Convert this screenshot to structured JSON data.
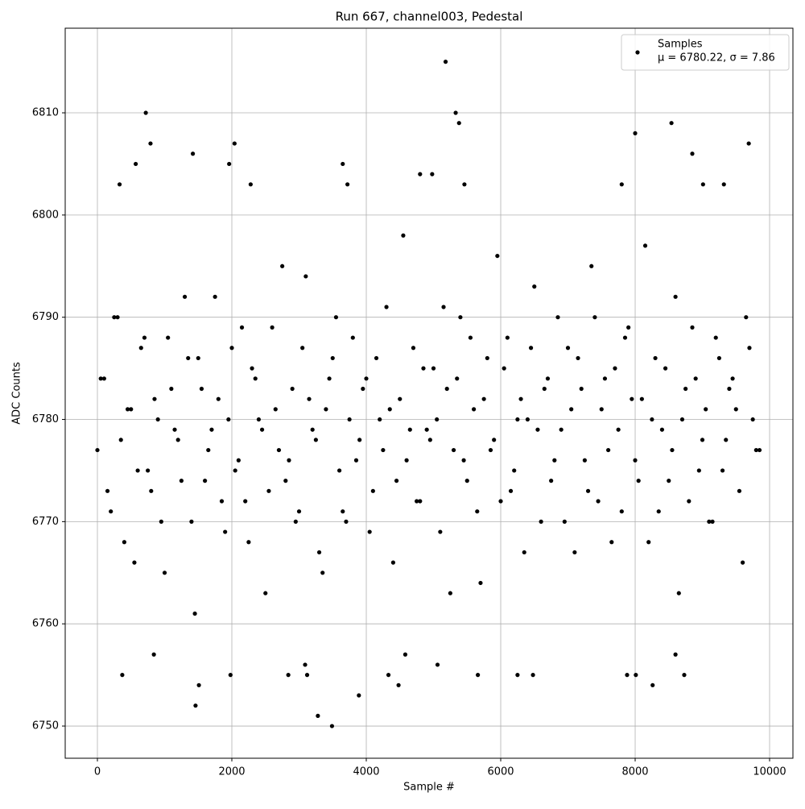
{
  "chart_data": {
    "type": "scatter",
    "title": "Run 667, channel003, Pedestal",
    "xlabel": "Sample #",
    "ylabel": "ADC Counts",
    "xlim": [
      -479,
      10347
    ],
    "ylim": [
      6746.85,
      6818.28
    ],
    "xticks": [
      0,
      2000,
      4000,
      6000,
      8000,
      10000
    ],
    "yticks": [
      6750,
      6760,
      6770,
      6780,
      6790,
      6800,
      6810
    ],
    "grid": true,
    "legend": "upper right",
    "legend_stats": "μ = 6780.22, σ = 7.86",
    "x": [
      720,
      790,
      570,
      1420,
      2040,
      1960,
      3650,
      5180,
      5330,
      5380,
      8000,
      8540,
      8850,
      9690,
      1460,
      1510,
      3280,
      3490,
      3890,
      4480,
      8260,
      370,
      1980,
      2840,
      3120,
      4330,
      5060,
      5660,
      6250,
      6480,
      7880,
      8010,
      8730,
      3090,
      4580,
      8600,
      840,
      330,
      2280,
      3720,
      4980,
      4800,
      5460,
      7800,
      9320,
      9010,
      0,
      100,
      200,
      300,
      400,
      500,
      600,
      700,
      800,
      900,
      1000,
      1100,
      1200,
      1300,
      1400,
      1500,
      1600,
      1700,
      1800,
      1900,
      2000,
      2100,
      2200,
      2300,
      2400,
      2500,
      2600,
      2700,
      2800,
      2900,
      3000,
      3100,
      3200,
      3300,
      3400,
      3500,
      3600,
      3700,
      3800,
      3900,
      4000,
      4100,
      4200,
      4300,
      4400,
      4500,
      4600,
      4700,
      4800,
      4900,
      5000,
      5100,
      5200,
      5300,
      5400,
      5500,
      5600,
      5700,
      5800,
      5900,
      6000,
      6100,
      6200,
      6300,
      6400,
      6500,
      6600,
      6700,
      6800,
      6900,
      7000,
      7100,
      7200,
      7300,
      7400,
      7500,
      7600,
      7700,
      7800,
      7900,
      8000,
      8100,
      8200,
      8300,
      8400,
      8500,
      8600,
      8700,
      8800,
      8900,
      9000,
      9100,
      9200,
      9300,
      9400,
      9500,
      9600,
      9700,
      9800,
      50,
      150,
      250,
      350,
      450,
      550,
      650,
      750,
      850,
      950,
      1050,
      1150,
      1250,
      1350,
      1450,
      1550,
      1650,
      1750,
      1850,
      1950,
      2050,
      2150,
      2250,
      2350,
      2450,
      2550,
      2650,
      2750,
      2850,
      2950,
      3050,
      3150,
      3250,
      3350,
      3450,
      3550,
      3650,
      3750,
      3850,
      3950,
      4050,
      4150,
      4250,
      4350,
      4450,
      4550,
      4650,
      4750,
      4850,
      4950,
      5050,
      5150,
      5250,
      5350,
      5450,
      5550,
      5650,
      5750,
      5850,
      5950,
      6050,
      6150,
      6250,
      6350,
      6450,
      6550,
      6650,
      6750,
      6850,
      6950,
      7050,
      7150,
      7250,
      7350,
      7450,
      7550,
      7650,
      7750,
      7850,
      7950,
      8050,
      8150,
      8250,
      8350,
      8450,
      8550,
      8650,
      8750,
      8850,
      8950,
      9050,
      9150,
      9250,
      9350,
      9450,
      9550,
      9650,
      9750,
      9850
    ],
    "series": [
      {
        "name": "Samples",
        "color": "#000000",
        "values": [
          6810,
          6807,
          6805,
          6806,
          6807,
          6805,
          6805,
          6815,
          6810,
          6809,
          6808,
          6809,
          6806,
          6807,
          6752,
          6754,
          6751,
          6750,
          6753,
          6754,
          6754,
          6755,
          6755,
          6755,
          6755,
          6755,
          6756,
          6755,
          6755,
          6755,
          6755,
          6755,
          6755,
          6756,
          6757,
          6757,
          6757,
          6803,
          6803,
          6803,
          6804,
          6804,
          6803,
          6803,
          6803,
          6803,
          6777,
          6784,
          6771,
          6790,
          6768,
          6781,
          6775,
          6788,
          6773,
          6780,
          6765,
          6783,
          6778,
          6792,
          6770,
          6786,
          6774,
          6779,
          6782,
          6769,
          6787,
          6776,
          6772,
          6785,
          6780,
          6763,
          6789,
          6777,
          6774,
          6783,
          6771,
          6794,
          6779,
          6767,
          6781,
          6786,
          6775,
          6770,
          6788,
          6778,
          6784,
          6773,
          6780,
          6791,
          6766,
          6782,
          6776,
          6787,
          6772,
          6779,
          6785,
          6769,
          6783,
          6777,
          6790,
          6774,
          6781,
          6764,
          6786,
          6778,
          6772,
          6788,
          6775,
          6782,
          6780,
          6793,
          6770,
          6784,
          6776,
          6779,
          6787,
          6767,
          6783,
          6773,
          6790,
          6781,
          6777,
          6785,
          6771,
          6789,
          6776,
          6782,
          6768,
          6786,
          6779,
          6774,
          6792,
          6780,
          6772,
          6784,
          6778,
          6770,
          6788,
          6775,
          6783,
          6781,
          6766,
          6787,
          6777,
          6784,
          6773,
          6790,
          6778,
          6781,
          6766,
          6787,
          6775,
          6782,
          6770,
          6788,
          6779,
          6774,
          6786,
          6761,
          6783,
          6777,
          6792,
          6772,
          6780,
          6775,
          6789,
          6768,
          6784,
          6779,
          6773,
          6781,
          6795,
          6776,
          6770,
          6787,
          6782,
          6778,
          6765,
          6784,
          6790,
          6771,
          6780,
          6776,
          6783,
          6769,
          6786,
          6777,
          6781,
          6774,
          6798,
          6779,
          6772,
          6785,
          6778,
          6780,
          6791,
          6763,
          6784,
          6776,
          6788,
          6771,
          6782,
          6777,
          6796,
          6785,
          6773,
          6780,
          6767,
          6787,
          6779,
          6783,
          6774,
          6790,
          6770,
          6781,
          6786,
          6776,
          6795,
          6772,
          6784,
          6768,
          6779,
          6788,
          6782,
          6774,
          6797,
          6780,
          6771,
          6785,
          6777,
          6763,
          6783,
          6789,
          6775,
          6781,
          6770,
          6786,
          6778,
          6784,
          6773,
          6790,
          6780,
          6777
        ]
      }
    ]
  }
}
